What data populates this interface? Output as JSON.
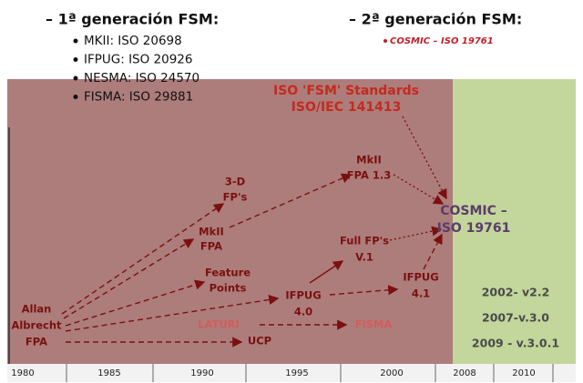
{
  "header": {
    "gen1": {
      "title": "– 1ª generación FSM:",
      "items": [
        "MKII: ISO 20698",
        "IFPUG: ISO  20926",
        "NESMA: ISO 24570",
        "FISMA: ISO 29881"
      ]
    },
    "gen2": {
      "title": "– 2ª generación FSM:",
      "items": [
        "COSMIC – ISO 19761"
      ]
    }
  },
  "timeline": {
    "years": [
      "1980",
      "1985",
      "1990",
      "1995",
      "2000",
      "2008",
      "2010"
    ]
  },
  "nodes": [
    {
      "lines": [
        "ISO 'FSM' Standards",
        "ISO/IEC 141413"
      ]
    },
    {
      "lines": [
        "MkII",
        "FPA 1.3"
      ]
    },
    {
      "lines": [
        "3-D",
        "FP's"
      ]
    },
    {
      "lines": [
        "MkII",
        "FPA"
      ]
    },
    {
      "lines": [
        "Full FP's",
        "V.1"
      ]
    },
    {
      "lines": [
        "COSMIC –",
        "ISO 19761"
      ]
    },
    {
      "lines": [
        "Feature",
        "Points"
      ]
    },
    {
      "lines": [
        "IFPUG",
        "4.1"
      ]
    },
    {
      "lines": [
        "IFPUG",
        "4.0"
      ]
    },
    {
      "lines": [
        "Allan",
        "Albrecht",
        "FPA"
      ]
    },
    {
      "lines": [
        "LATURI"
      ]
    },
    {
      "lines": [
        "FISMA"
      ]
    },
    {
      "lines": [
        "UCP"
      ]
    }
  ],
  "versions": [
    "2002- v2.2",
    "2007-v.3.0",
    "2009 - v.3.0.1"
  ]
}
